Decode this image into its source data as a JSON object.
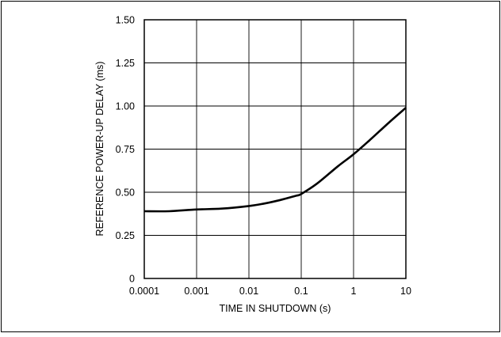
{
  "chart_data": {
    "type": "line",
    "title": "",
    "xlabel": "TIME IN SHUTDOWN (s)",
    "ylabel": "REFERENCE POWER-UP DELAY (ms)",
    "x_scale": "log",
    "xlim": [
      0.0001,
      10
    ],
    "ylim": [
      0,
      1.5
    ],
    "x_ticks": [
      0.0001,
      0.001,
      0.01,
      0.1,
      1,
      10
    ],
    "x_tick_labels": [
      "0.0001",
      "0.001",
      "0.01",
      "0.1",
      "1",
      "10"
    ],
    "y_ticks": [
      0,
      0.25,
      0.5,
      0.75,
      1.0,
      1.25,
      1.5
    ],
    "y_tick_labels": [
      "0",
      "0.25",
      "0.50",
      "0.75",
      "1.00",
      "1.25",
      "1.50"
    ],
    "grid": true,
    "legend": "none",
    "series": [
      {
        "color": "#000000",
        "x": [
          0.0001,
          0.0003,
          0.001,
          0.003,
          0.01,
          0.02,
          0.04,
          0.08,
          0.1,
          0.2,
          0.5,
          1,
          2,
          5,
          10
        ],
        "y": [
          0.39,
          0.39,
          0.4,
          0.405,
          0.42,
          0.435,
          0.455,
          0.48,
          0.49,
          0.55,
          0.65,
          0.72,
          0.8,
          0.91,
          0.99
        ]
      }
    ]
  }
}
